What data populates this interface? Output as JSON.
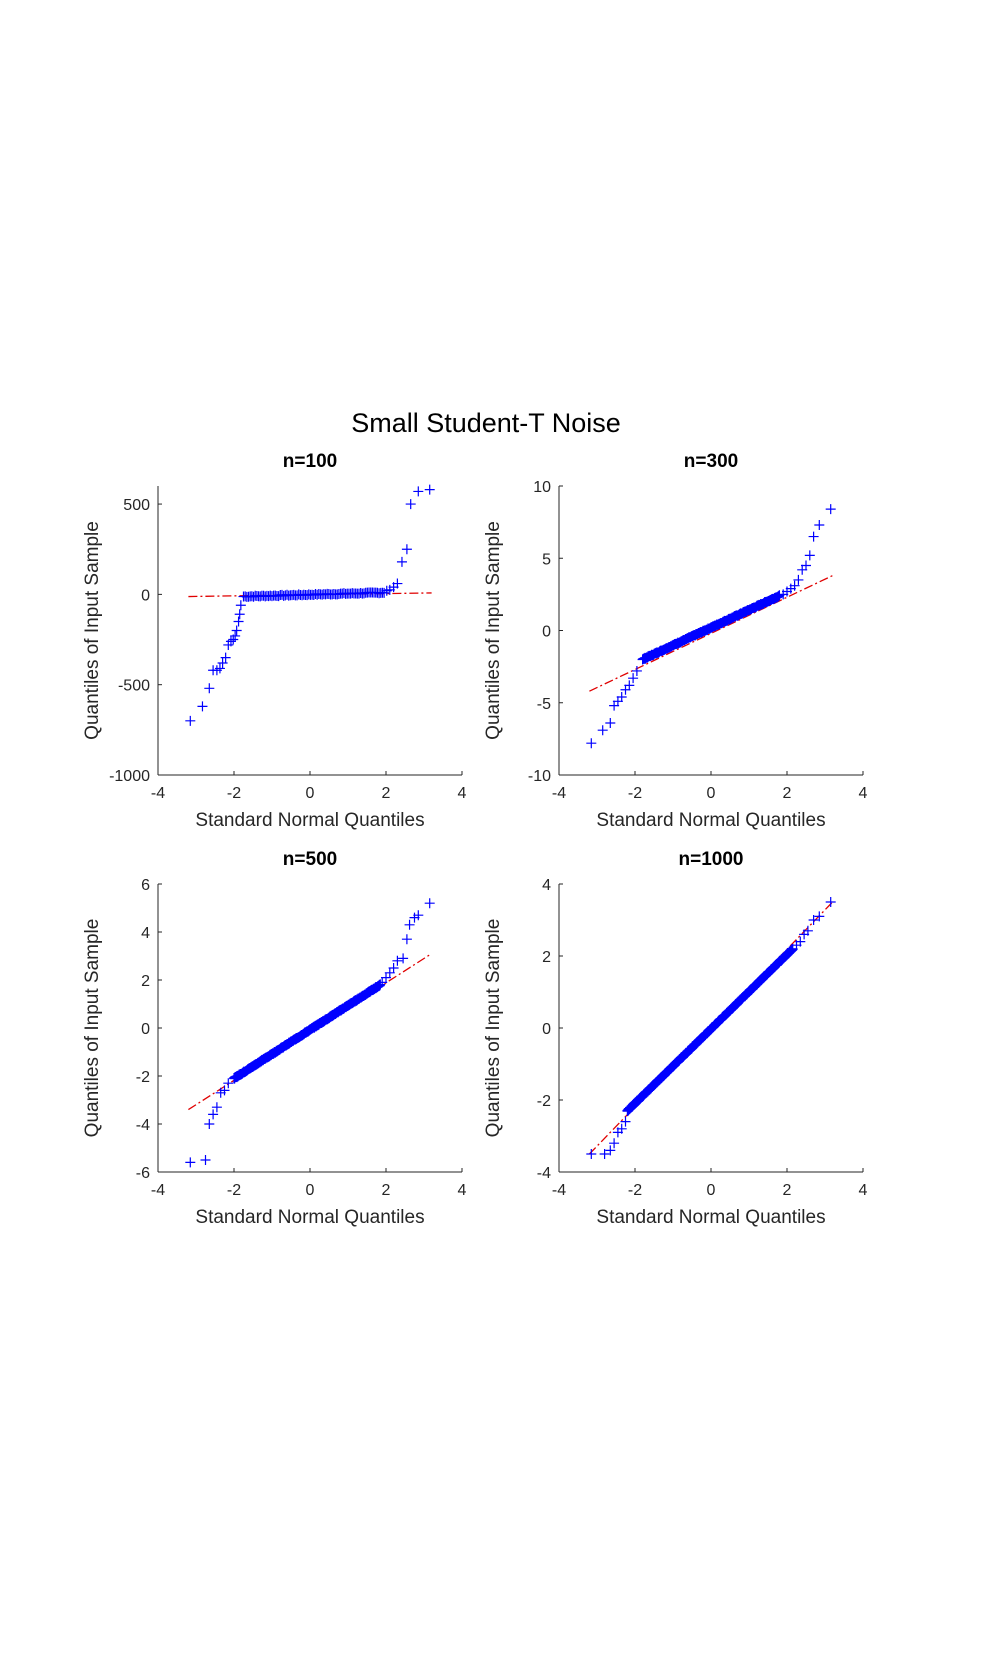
{
  "figure": {
    "title": "Small Student-T Noise",
    "colors": {
      "marker": "#0000ff",
      "reference_line": "#e00000",
      "axes": "#262626"
    }
  },
  "chart_data": [
    {
      "type": "scatter",
      "title": "n=100",
      "xlabel": "Standard Normal Quantiles",
      "ylabel": "Quantiles of Input Sample",
      "xlim": [
        -4,
        4
      ],
      "ylim": [
        -1000,
        600
      ],
      "xticks": [
        -4,
        -2,
        0,
        2,
        4
      ],
      "yticks": [
        -1000,
        -500,
        0,
        500
      ],
      "grid": false,
      "reference_line": {
        "x": [
          -3.2,
          3.2
        ],
        "y": [
          -12,
          8
        ]
      },
      "body": {
        "x": [
          -1.75,
          1.95
        ],
        "y": [
          -12,
          10
        ],
        "count": 85
      },
      "points": {
        "x": [
          -3.15,
          -2.83,
          -2.65,
          -2.55,
          -2.45,
          -2.37,
          -2.3,
          -2.22,
          -2.15,
          -2.08,
          -2.02,
          -1.97,
          -1.93,
          -1.88,
          -1.85,
          -1.82,
          2.02,
          2.1,
          2.2,
          2.3,
          2.42,
          2.55,
          2.65,
          2.85,
          3.15
        ],
        "y": [
          -700,
          -620,
          -520,
          -420,
          -420,
          -410,
          -380,
          -350,
          -280,
          -260,
          -250,
          -230,
          -200,
          -150,
          -110,
          -60,
          20,
          25,
          40,
          60,
          180,
          250,
          500,
          570,
          580
        ]
      }
    },
    {
      "type": "scatter",
      "title": "n=300",
      "xlabel": "Standard Normal Quantiles",
      "ylabel": "Quantiles of Input Sample",
      "xlim": [
        -4,
        4
      ],
      "ylim": [
        -10,
        10
      ],
      "xticks": [
        -4,
        -2,
        0,
        2,
        4
      ],
      "yticks": [
        -10,
        -5,
        0,
        5,
        10
      ],
      "grid": false,
      "reference_line": {
        "x": [
          -3.2,
          3.2
        ],
        "y": [
          -4.2,
          3.8
        ]
      },
      "body": {
        "x": [
          -1.8,
          1.8
        ],
        "y": [
          -2.0,
          2.4
        ],
        "count": 250
      },
      "points": {
        "x": [
          -3.15,
          -2.85,
          -2.65,
          -2.55,
          -2.45,
          -2.35,
          -2.25,
          -2.15,
          -2.05,
          -1.95,
          1.9,
          2.0,
          2.1,
          2.2,
          2.3,
          2.4,
          2.5,
          2.6,
          2.7,
          2.85,
          3.15
        ],
        "y": [
          -7.8,
          -6.9,
          -6.4,
          -5.2,
          -4.9,
          -4.6,
          -4.1,
          -3.8,
          -3.3,
          -2.8,
          2.5,
          2.7,
          2.9,
          3.1,
          3.5,
          4.2,
          4.5,
          5.2,
          6.5,
          7.3,
          8.4
        ]
      }
    },
    {
      "type": "scatter",
      "title": "n=500",
      "xlabel": "Standard Normal Quantiles",
      "ylabel": "Quantiles of Input Sample",
      "xlim": [
        -4,
        4
      ],
      "ylim": [
        -6,
        6
      ],
      "xticks": [
        -4,
        -2,
        0,
        2,
        4
      ],
      "yticks": [
        -6,
        -4,
        -2,
        0,
        2,
        4,
        6
      ],
      "grid": false,
      "reference_line": {
        "x": [
          -3.2,
          3.2
        ],
        "y": [
          -3.4,
          3.1
        ]
      },
      "body": {
        "x": [
          -2.0,
          1.85
        ],
        "y": [
          -2.1,
          1.8
        ],
        "count": 450
      },
      "points": {
        "x": [
          -3.15,
          -2.75,
          -2.65,
          -2.55,
          -2.45,
          -2.35,
          -2.25,
          -2.15,
          1.9,
          2.0,
          2.1,
          2.2,
          2.3,
          2.45,
          2.55,
          2.62,
          2.75,
          2.85,
          3.15
        ],
        "y": [
          -5.6,
          -5.5,
          -4.0,
          -3.6,
          -3.3,
          -2.7,
          -2.6,
          -2.3,
          1.9,
          2.1,
          2.3,
          2.5,
          2.8,
          2.9,
          3.7,
          4.3,
          4.6,
          4.7,
          5.2
        ]
      }
    },
    {
      "type": "scatter",
      "title": "n=1000",
      "xlabel": "Standard Normal Quantiles",
      "ylabel": "Quantiles of Input Sample",
      "xlim": [
        -4,
        4
      ],
      "ylim": [
        -4,
        4
      ],
      "xticks": [
        -4,
        -2,
        0,
        2,
        4
      ],
      "yticks": [
        -4,
        -2,
        0,
        2,
        4
      ],
      "grid": false,
      "reference_line": {
        "x": [
          -3.2,
          3.2
        ],
        "y": [
          -3.5,
          3.5
        ]
      },
      "body": {
        "x": [
          -2.2,
          2.15
        ],
        "y": [
          -2.3,
          2.2
        ],
        "count": 900
      },
      "points": {
        "x": [
          -3.15,
          -2.8,
          -2.65,
          -2.55,
          -2.45,
          -2.35,
          -2.25,
          2.25,
          2.35,
          2.45,
          2.55,
          2.7,
          2.85,
          3.15
        ],
        "y": [
          -3.5,
          -3.5,
          -3.4,
          -3.2,
          -2.9,
          -2.8,
          -2.6,
          2.3,
          2.4,
          2.6,
          2.7,
          3.0,
          3.1,
          3.5
        ]
      }
    }
  ]
}
